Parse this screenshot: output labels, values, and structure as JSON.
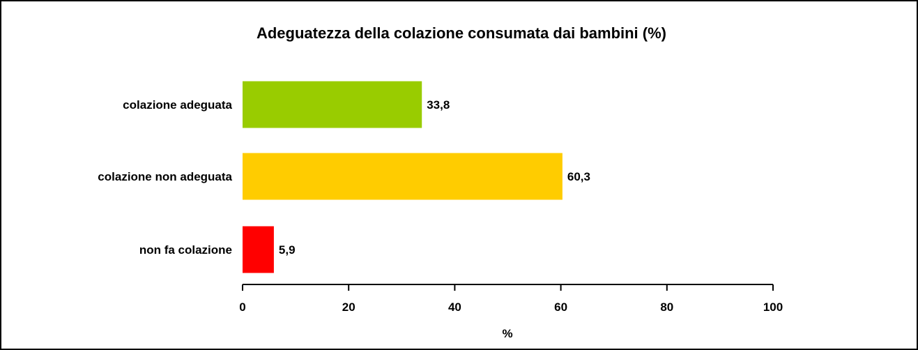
{
  "chart_data": {
    "type": "bar",
    "orientation": "horizontal",
    "title": "Adeguatezza della colazione consumata dai bambini (%)",
    "xlabel": "%",
    "ylabel": "",
    "xlim": [
      0,
      100
    ],
    "x_ticks": [
      0,
      20,
      40,
      60,
      80,
      100
    ],
    "x_tick_labels": [
      "0",
      "20",
      "40",
      "60",
      "80",
      "100"
    ],
    "grid": false,
    "legend": "none",
    "categories": [
      "colazione adeguata",
      "colazione non adeguata",
      "non fa colazione"
    ],
    "values": [
      33.8,
      60.3,
      5.9
    ],
    "value_labels": [
      "33,8",
      "60,3",
      "5,9"
    ],
    "colors": [
      "#99cc00",
      "#ffcc00",
      "#ff0000"
    ]
  }
}
